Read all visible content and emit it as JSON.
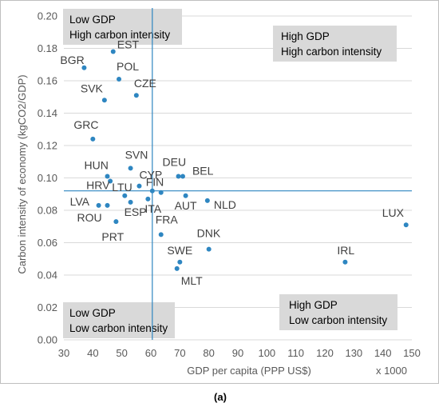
{
  "colors": {
    "point": "#2E86C1",
    "threshold_line": "#2E86C1",
    "quadrant_box": "#D9D9D9",
    "gridline": "#D9D9D9",
    "axis_text": "#595959"
  },
  "chart_data": {
    "type": "scatter",
    "title": "",
    "xlabel": "GDP per capita (PPP US$)",
    "x_unit_note": "x 1000",
    "ylabel": "Carbon intensity of economy (kgCO2/GDP)",
    "xlim": [
      30,
      150
    ],
    "ylim": [
      0,
      0.2
    ],
    "x_ticks": [
      "30",
      "40",
      "50",
      "60",
      "70",
      "80",
      "90",
      "100",
      "110",
      "120",
      "130",
      "140",
      "150"
    ],
    "y_ticks": [
      "0.00",
      "0.02",
      "0.04",
      "0.06",
      "0.08",
      "0.10",
      "0.12",
      "0.14",
      "0.16",
      "0.18",
      "0.20"
    ],
    "grid": "horizontal",
    "threshold_x": 60.5,
    "threshold_y": 0.092,
    "points": [
      {
        "label": "BGR",
        "x": 37,
        "y": 0.168
      },
      {
        "label": "EST",
        "x": 47,
        "y": 0.178
      },
      {
        "label": "POL",
        "x": 49,
        "y": 0.161
      },
      {
        "label": "SVK",
        "x": 44,
        "y": 0.148
      },
      {
        "label": "CZE",
        "x": 55,
        "y": 0.151
      },
      {
        "label": "GRC",
        "x": 40,
        "y": 0.124
      },
      {
        "label": "SVN",
        "x": 53,
        "y": 0.106
      },
      {
        "label": "HUN",
        "x": 45,
        "y": 0.101
      },
      {
        "label": "HRV",
        "x": 46,
        "y": 0.098
      },
      {
        "label": "CYP",
        "x": 56,
        "y": 0.095
      },
      {
        "label": "LTU",
        "x": 51,
        "y": 0.089
      },
      {
        "label": "FIN",
        "x": 63.5,
        "y": 0.091
      },
      {
        "label": "DEU",
        "x": 69.5,
        "y": 0.101
      },
      {
        "label": "BEL",
        "x": 71,
        "y": 0.101
      },
      {
        "label": "LVA",
        "x": 42,
        "y": 0.083
      },
      {
        "label": "ESP",
        "x": 53,
        "y": 0.085
      },
      {
        "label": "ITA",
        "x": 59,
        "y": 0.087
      },
      {
        "label": "AUT",
        "x": 72,
        "y": 0.089
      },
      {
        "label": "NLD",
        "x": 79.5,
        "y": 0.086
      },
      {
        "label": "ROU",
        "x": 45,
        "y": 0.083
      },
      {
        "label": "PRT",
        "x": 48,
        "y": 0.073
      },
      {
        "label": "FRA",
        "x": 63.5,
        "y": 0.065
      },
      {
        "label": "DNK",
        "x": 80,
        "y": 0.056
      },
      {
        "label": "SWE",
        "x": 70,
        "y": 0.048
      },
      {
        "label": "MLT",
        "x": 69,
        "y": 0.044
      },
      {
        "label": "IRL",
        "x": 127,
        "y": 0.048
      },
      {
        "label": "LUX",
        "x": 148,
        "y": 0.071
      },
      {
        "label": "",
        "x": 60.5,
        "y": 0.092
      }
    ]
  },
  "quadrants": {
    "top_left": [
      "Low GDP",
      "High carbon intensity"
    ],
    "top_right": [
      "High GDP",
      "High carbon intensity"
    ],
    "bottom_left": [
      "Low GDP",
      "Low carbon intensity"
    ],
    "bottom_right": [
      "High GDP",
      "Low carbon intensity"
    ]
  },
  "caption": "(a)"
}
